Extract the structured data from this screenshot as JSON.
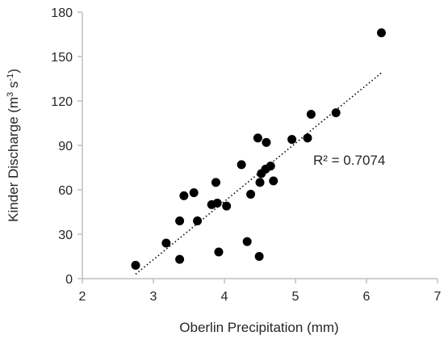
{
  "chart_data": {
    "type": "scatter",
    "title": "",
    "xlabel": "Oberlin Precipitation (mm)",
    "ylabel_main": "Kinder Discharge (m",
    "ylabel_sup1": "3",
    "ylabel_mid": " s",
    "ylabel_sup2": "-1",
    "ylabel_end": ")",
    "xlim": [
      2,
      7
    ],
    "ylim": [
      0,
      180
    ],
    "xticks": [
      2,
      3,
      4,
      5,
      6,
      7
    ],
    "yticks": [
      0,
      30,
      60,
      90,
      120,
      150,
      180
    ],
    "grid": false,
    "legend": "none",
    "series": [
      {
        "points": [
          {
            "x": 2.75,
            "y": 9
          },
          {
            "x": 3.18,
            "y": 24
          },
          {
            "x": 3.37,
            "y": 39
          },
          {
            "x": 3.37,
            "y": 13
          },
          {
            "x": 3.43,
            "y": 56
          },
          {
            "x": 3.57,
            "y": 58
          },
          {
            "x": 3.62,
            "y": 39
          },
          {
            "x": 3.82,
            "y": 50
          },
          {
            "x": 3.88,
            "y": 65
          },
          {
            "x": 3.9,
            "y": 51
          },
          {
            "x": 3.92,
            "y": 18
          },
          {
            "x": 4.03,
            "y": 49
          },
          {
            "x": 4.24,
            "y": 77
          },
          {
            "x": 4.32,
            "y": 25
          },
          {
            "x": 4.37,
            "y": 57
          },
          {
            "x": 4.47,
            "y": 95
          },
          {
            "x": 4.49,
            "y": 15
          },
          {
            "x": 4.5,
            "y": 65
          },
          {
            "x": 4.52,
            "y": 71
          },
          {
            "x": 4.58,
            "y": 74
          },
          {
            "x": 4.59,
            "y": 92
          },
          {
            "x": 4.65,
            "y": 76
          },
          {
            "x": 4.69,
            "y": 66
          },
          {
            "x": 4.95,
            "y": 94
          },
          {
            "x": 5.17,
            "y": 95
          },
          {
            "x": 5.22,
            "y": 111
          },
          {
            "x": 5.57,
            "y": 112
          },
          {
            "x": 6.21,
            "y": 166
          }
        ],
        "color": "#000000"
      }
    ],
    "trendline": {
      "type": "linear",
      "x_start": 2.75,
      "x_end": 6.21,
      "y_start": 3,
      "y_end": 139,
      "style": "dotted"
    },
    "annotation": {
      "text": "R² = 0.7074"
    }
  }
}
